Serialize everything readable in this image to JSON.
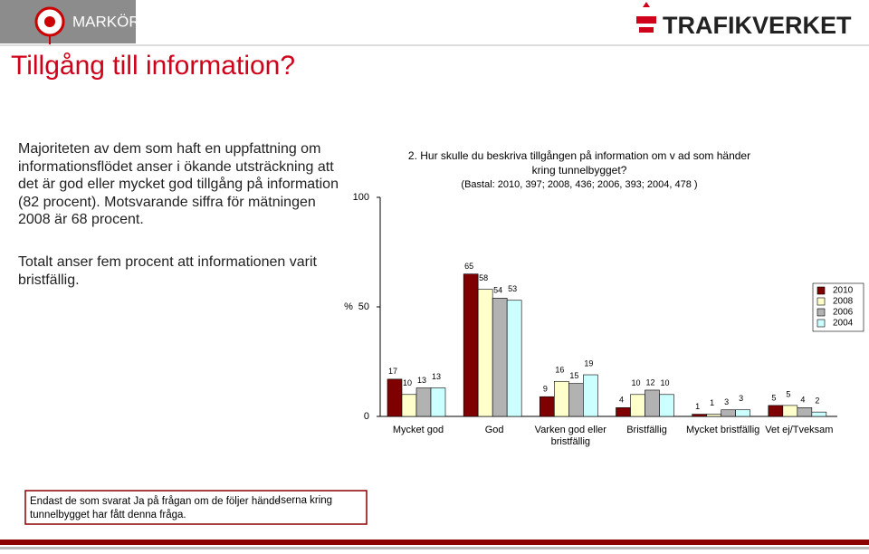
{
  "header": {
    "label": "MARKÖR",
    "logo_text": "TRAFIKVERKET"
  },
  "title": "Tillgång till information?",
  "paragraphs": [
    [
      "Majoriteten   av dem som haft en uppfattning om",
      "informationsflödet anser i ökande utsträckning att",
      "det är god eller mycket god tillgång   på information",
      "(82 procent). Motsvarande siffra för mätningen",
      "2008 är 68 procent."
    ],
    [
      "Totalt anser fem procent att informationen varit",
      "bristfällig."
    ]
  ],
  "footnote": {
    "left_lines": [
      "Endast de som svarat Ja på frågan om de följer hände",
      "tunnelbygget har fått denna fråga."
    ],
    "right": "Iserna kring"
  },
  "chart_data": {
    "type": "bar",
    "title_lines": [
      "2. Hur skulle du beskriva tillgången på information om v          ad som händer",
      "kring tunnelbygget?"
    ],
    "subtitle": "(Bastal: 2010, 397; 2008, 436; 2006, 393; 2004, 478          )",
    "y_label": "%",
    "categories": [
      "Mycket god",
      "God",
      "Varken god eller bristfällig",
      "Bristfällig",
      "Mycket bristfällig",
      "Vet ej/Tveksam"
    ],
    "series": [
      {
        "name": "2010",
        "color": "#7f0000",
        "values": [
          17,
          65,
          9,
          4,
          1,
          5
        ]
      },
      {
        "name": "2008",
        "color": "#ffffcc",
        "values": [
          10,
          58,
          16,
          10,
          1,
          5
        ]
      },
      {
        "name": "2006",
        "color": "#b2b2b2",
        "values": [
          13,
          54,
          15,
          12,
          3,
          4
        ]
      },
      {
        "name": "2004",
        "color": "#ccffff",
        "values": [
          13,
          53,
          19,
          10,
          3,
          2
        ]
      }
    ],
    "ylim": [
      0,
      100
    ],
    "yticks": [
      0,
      50,
      100
    ],
    "legend": "right"
  }
}
